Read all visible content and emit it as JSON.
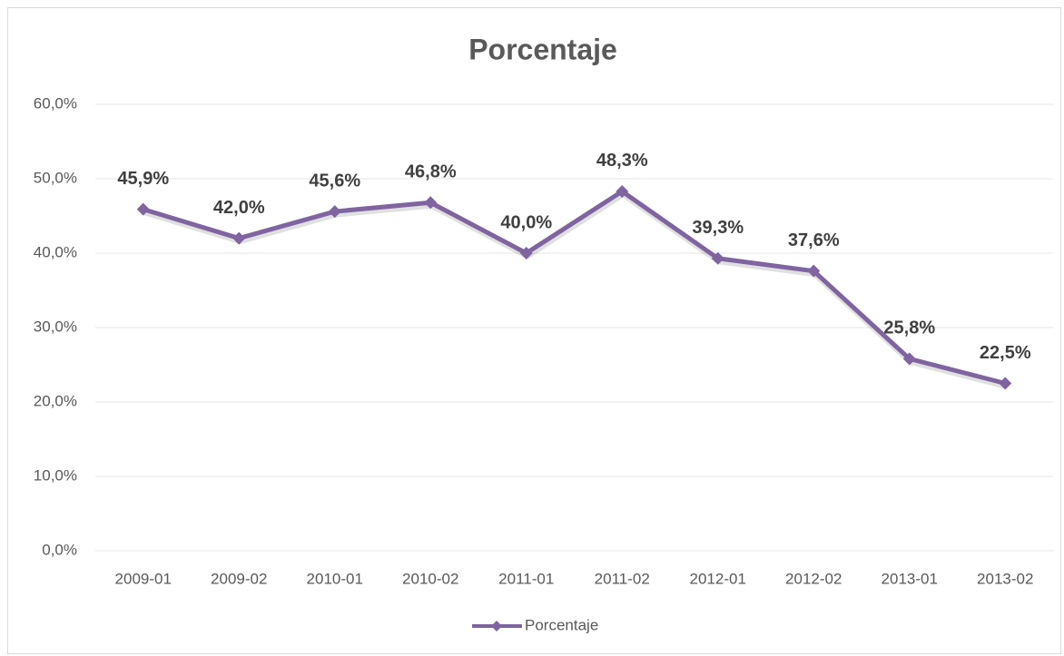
{
  "chart_data": {
    "type": "line",
    "title": "Porcentaje",
    "categories": [
      "2009-01",
      "2009-02",
      "2010-01",
      "2010-02",
      "2011-01",
      "2011-02",
      "2012-01",
      "2012-02",
      "2013-01",
      "2013-02"
    ],
    "series": [
      {
        "name": "Porcentaje",
        "color": "#7f64a0",
        "values": [
          45.9,
          42.0,
          45.6,
          46.8,
          40.0,
          48.3,
          39.3,
          37.6,
          25.8,
          22.5
        ],
        "value_labels": [
          "45,9%",
          "42,0%",
          "45,6%",
          "46,8%",
          "40,0%",
          "48,3%",
          "39,3%",
          "37,6%",
          "25,8%",
          "22,5%"
        ]
      }
    ],
    "ylim": [
      0,
      60
    ],
    "yticks": [
      {
        "value": 0,
        "label": "0,0%"
      },
      {
        "value": 10,
        "label": "10,0%"
      },
      {
        "value": 20,
        "label": "20,0%"
      },
      {
        "value": 30,
        "label": "30,0%"
      },
      {
        "value": 40,
        "label": "40,0%"
      },
      {
        "value": 50,
        "label": "50,0%"
      },
      {
        "value": 60,
        "label": "60,0%"
      }
    ],
    "grid": true,
    "legend": "bottom"
  }
}
